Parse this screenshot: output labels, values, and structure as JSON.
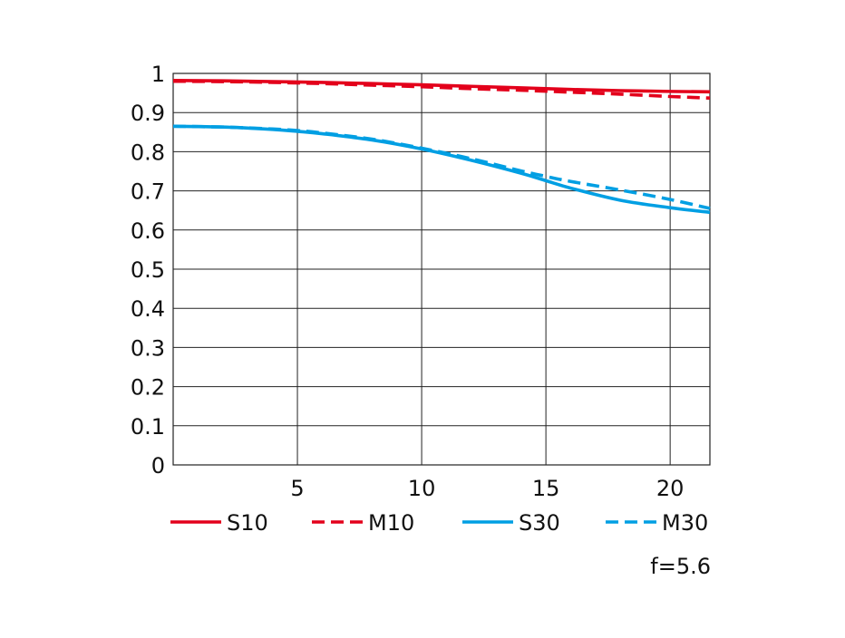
{
  "chart_data": {
    "type": "line",
    "title": "",
    "xlabel": "",
    "ylabel": "",
    "xlim": [
      0,
      21.6
    ],
    "ylim": [
      0,
      1
    ],
    "x_ticks": [
      5,
      10,
      15,
      20
    ],
    "y_ticks": [
      0,
      0.1,
      0.2,
      0.3,
      0.4,
      0.5,
      0.6,
      0.7,
      0.8,
      0.9,
      1
    ],
    "x_tick_labels": [
      "5",
      "10",
      "15",
      "20"
    ],
    "y_tick_labels": [
      "0",
      "0.1",
      "0.2",
      "0.3",
      "0.4",
      "0.5",
      "0.6",
      "0.7",
      "0.8",
      "0.9",
      "1"
    ],
    "grid": true,
    "legend_position": "bottom",
    "annotation": "f=5.6",
    "series": [
      {
        "name": "S10",
        "color": "#e3001b",
        "dash": false,
        "x": [
          0,
          2,
          4,
          6,
          8,
          10,
          12,
          14,
          16,
          18,
          20,
          21.6
        ],
        "y": [
          0.982,
          0.981,
          0.979,
          0.977,
          0.974,
          0.971,
          0.967,
          0.963,
          0.959,
          0.956,
          0.954,
          0.953
        ]
      },
      {
        "name": "M10",
        "color": "#e3001b",
        "dash": true,
        "x": [
          0,
          2,
          4,
          6,
          8,
          10,
          12,
          14,
          16,
          18,
          20,
          21.6
        ],
        "y": [
          0.98,
          0.979,
          0.977,
          0.974,
          0.97,
          0.966,
          0.961,
          0.957,
          0.952,
          0.947,
          0.941,
          0.937
        ]
      },
      {
        "name": "S30",
        "color": "#009fe3",
        "dash": false,
        "x": [
          0,
          2,
          4,
          5,
          6,
          8,
          10,
          12,
          14,
          15,
          16,
          18,
          20,
          21.6
        ],
        "y": [
          0.865,
          0.863,
          0.857,
          0.852,
          0.846,
          0.83,
          0.807,
          0.778,
          0.745,
          0.726,
          0.707,
          0.676,
          0.657,
          0.645
        ]
      },
      {
        "name": "M30",
        "color": "#009fe3",
        "dash": true,
        "x": [
          0,
          2,
          4,
          5,
          6,
          8,
          10,
          12,
          14,
          15,
          16,
          18,
          20,
          21.6
        ],
        "y": [
          0.865,
          0.863,
          0.858,
          0.854,
          0.848,
          0.832,
          0.809,
          0.782,
          0.751,
          0.737,
          0.724,
          0.702,
          0.678,
          0.655
        ]
      }
    ]
  }
}
